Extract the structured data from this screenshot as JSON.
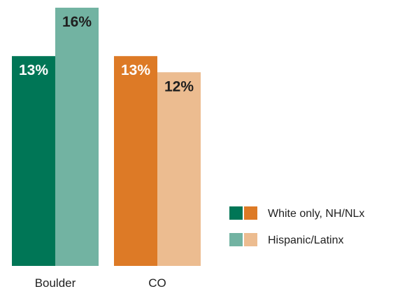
{
  "chart_data": {
    "type": "bar",
    "categories": [
      "Boulder",
      "CO"
    ],
    "ylim": [
      0,
      18
    ],
    "grid": false,
    "legend_placement": "right",
    "series": [
      {
        "name": "White only, NH/NLx",
        "values": [
          13,
          13
        ],
        "labels": [
          "13%",
          "13%"
        ]
      },
      {
        "name": "Hispanic/Latinx",
        "values": [
          16,
          12
        ],
        "labels": [
          "16%",
          "12%"
        ]
      }
    ],
    "colors": {
      "Boulder": [
        "#007656",
        "#72b3a2"
      ],
      "CO": [
        "#dd7a26",
        "#ecbc90"
      ]
    },
    "label_colors": {
      "Boulder": [
        "#ffffff",
        "#1f1f1f"
      ],
      "CO": [
        "#ffffff",
        "#1f1f1f"
      ]
    },
    "legend": [
      {
        "label": "White only, NH/NLx",
        "swatches": [
          "#007656",
          "#dd7a26"
        ]
      },
      {
        "label": "Hispanic/Latinx",
        "swatches": [
          "#72b3a2",
          "#ecbc90"
        ]
      }
    ]
  }
}
